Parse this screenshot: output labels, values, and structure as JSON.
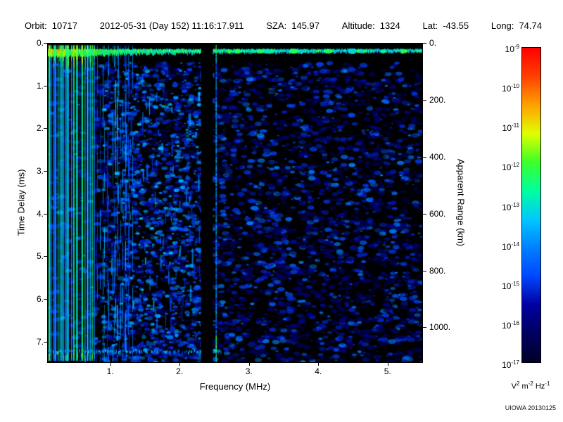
{
  "header": {
    "items": [
      {
        "label": "Orbit:",
        "value": "10717"
      },
      {
        "label": "",
        "value": "2012-05-31 (Day 152) 11:16:17.911"
      },
      {
        "label": "SZA:",
        "value": "145.97"
      },
      {
        "label": "Altitude:",
        "value": "1324"
      },
      {
        "label": "Lat:",
        "value": "-43.55"
      },
      {
        "label": "Long:",
        "value": "74.74"
      }
    ]
  },
  "chart_data": {
    "type": "heatmap",
    "xlabel": "Frequency (MHz)",
    "ylabel": "Time Delay (ms)",
    "y2label": "Apparent Range (km)",
    "xlim": [
      0.1,
      5.5
    ],
    "ylim": [
      0,
      7.5
    ],
    "y2lim": [
      0,
      1125
    ],
    "x_ticks": [
      {
        "value": 1,
        "label": "1."
      },
      {
        "value": 2,
        "label": "2."
      },
      {
        "value": 3,
        "label": "3."
      },
      {
        "value": 4,
        "label": "4."
      },
      {
        "value": 5,
        "label": "5."
      }
    ],
    "y_ticks": [
      {
        "value": 0,
        "label": "0."
      },
      {
        "value": 1,
        "label": "1."
      },
      {
        "value": 2,
        "label": "2."
      },
      {
        "value": 3,
        "label": "3."
      },
      {
        "value": 4,
        "label": "4."
      },
      {
        "value": 5,
        "label": "5."
      },
      {
        "value": 6,
        "label": "6."
      },
      {
        "value": 7,
        "label": "7."
      }
    ],
    "y2_ticks": [
      {
        "value": 0,
        "label": "0."
      },
      {
        "value": 200,
        "label": "200."
      },
      {
        "value": 400,
        "label": "400."
      },
      {
        "value": 600,
        "label": "600."
      },
      {
        "value": 800,
        "label": "800."
      },
      {
        "value": 1000,
        "label": "1000."
      }
    ],
    "colorbar": {
      "tick_exponents": [
        -9,
        -10,
        -11,
        -12,
        -13,
        -14,
        -15,
        -16,
        -17
      ],
      "unit_parts": [
        {
          "base": "V",
          "exp": "2"
        },
        {
          "base": "m",
          "exp": "-2"
        },
        {
          "base": "Hz",
          "exp": "-1"
        }
      ],
      "gradient_top_to_bottom": [
        "#ff0000",
        "#ff4000",
        "#ffa000",
        "#e0ff00",
        "#3cff28",
        "#00ffa0",
        "#00c8ff",
        "#0080ff",
        "#0046ff",
        "#0000a0",
        "#000060",
        "#000028"
      ]
    },
    "features": [
      "bright cyan-green surface reflection band near 0.2 ms across all frequencies, strongest below 1.5 MHz",
      "dense bright vertical plasma-oscillation stripes from 0.1 to about 0.8 MHz spanning full delay range",
      "sparser broken vertical stripes from 0.8 to about 1.4 MHz",
      "diffuse dark-blue noise speckle over most of the ionogram below 0.5 ms delay",
      "denser blue speckle between about 1 and 2.3 MHz",
      "dark vertical gap near 2.3-2.5 MHz with a bright narrow line at about 2.5 MHz",
      "patchy horizontal band near 7.2 ms delay below about 2.6 MHz"
    ],
    "render_hints": {
      "surface_band_ms": [
        0.13,
        0.32
      ],
      "dense_stripes_mhz": [
        0.1,
        0.78
      ],
      "sparse_stripes_mhz": [
        0.78,
        1.38
      ],
      "dark_gap_mhz": [
        2.31,
        2.48
      ],
      "bright_line_mhz": 2.52,
      "bottom_band_ms": 7.22,
      "bottom_band_max_mhz": 2.6,
      "noise_floor_ms": 0.45
    }
  },
  "footer": {
    "credit": "UIOWA 20130125"
  }
}
